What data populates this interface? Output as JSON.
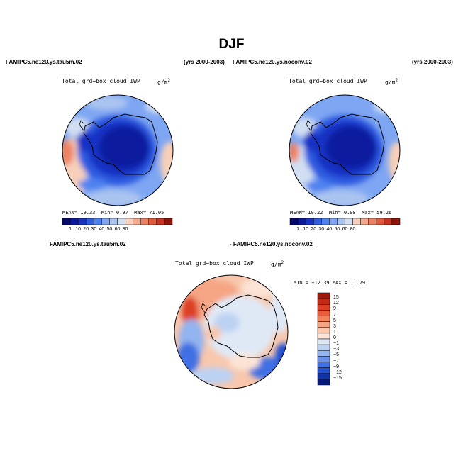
{
  "page": {
    "title": "DJF"
  },
  "panels": [
    {
      "header_left": "FAMIPC5.ne120.ys.tau5m.02",
      "header_right": "(yrs 2000-2003)",
      "plot_title": "Total grd−box cloud IWP",
      "units_base": "g/m",
      "units_exp": "2",
      "mean_label": "MEAN=",
      "mean_value": "19.33",
      "min_label": "Min=",
      "min_value": "0.97",
      "max_label": "Max=",
      "max_value": "71.05"
    },
    {
      "header_left": "FAMIPC5.ne120.ys.noconv.02",
      "header_right": "(yrs 2000-2003)",
      "plot_title": "Total grd−box cloud IWP",
      "units_base": "g/m",
      "units_exp": "2",
      "mean_label": "MEAN=",
      "mean_value": "19.22",
      "min_label": "Min=",
      "min_value": "0.98",
      "max_label": "Max=",
      "max_value": "59.26"
    }
  ],
  "diff_panel": {
    "header_left": "FAMIPC5.ne120.ys.tau5m.02",
    "header_right": "- FAMIPC5.ne120.ys.noconv.02",
    "plot_title": "Total grd−box cloud IWP",
    "units_base": "g/m",
    "units_exp": "2",
    "minmax_text": "MIN = −12.39  MAX =  11.79"
  },
  "colorbar_abs": {
    "labels": [
      "1",
      "10",
      "20",
      "30",
      "40",
      "50",
      "60",
      "80"
    ],
    "colors": [
      "#050a70",
      "#0a1a9e",
      "#1833c4",
      "#2f5ce0",
      "#4f82ef",
      "#7ea6f2",
      "#aac4f0",
      "#d2dff2",
      "#f6d0ba",
      "#f3a98a",
      "#ec8262",
      "#e0583d",
      "#c8321f",
      "#8f1309"
    ]
  },
  "colorbar_diff": {
    "labels": [
      "15",
      "12",
      "9",
      "7",
      "5",
      "3",
      "1",
      "0",
      "−1",
      "−3",
      "−5",
      "−7",
      "−9",
      "−12",
      "−15"
    ],
    "colors": [
      "#a01a0b",
      "#c32a16",
      "#dc3f24",
      "#ea5d3a",
      "#f18259",
      "#f5a583",
      "#f8c7ad",
      "#fbe4d6",
      "#dfe9f6",
      "#bcd2f3",
      "#92b4f0",
      "#6893ec",
      "#4170e3",
      "#2250d2",
      "#1134ad",
      "#06197c"
    ]
  }
}
